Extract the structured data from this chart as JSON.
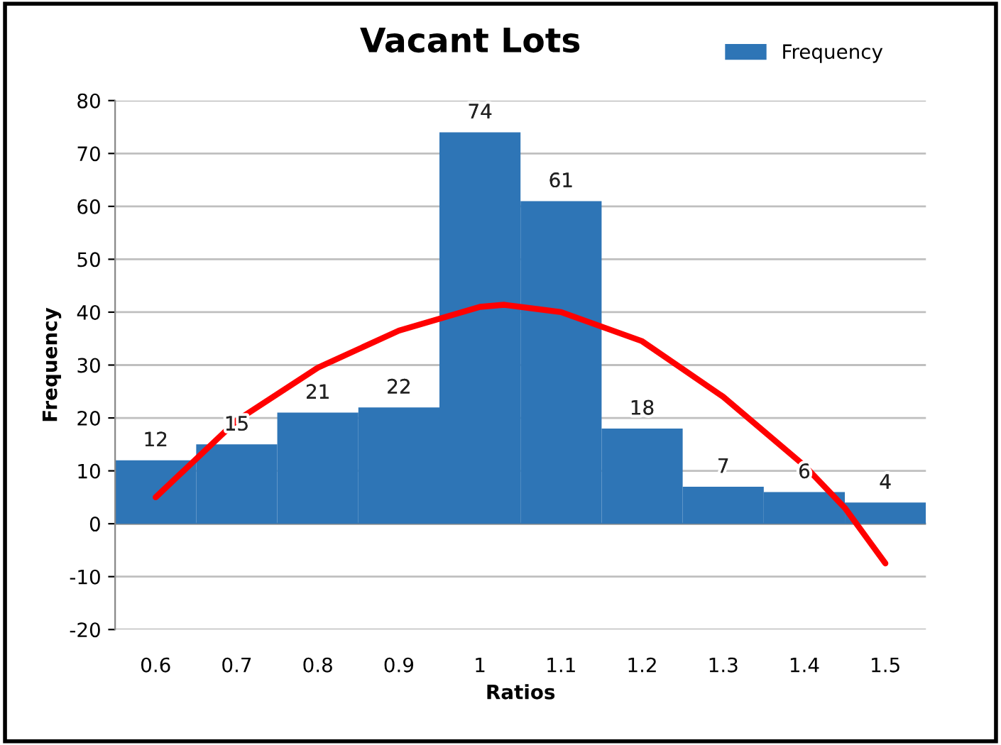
{
  "chart_data": {
    "type": "histogram",
    "title": "Vacant Lots",
    "xlabel": "Ratios",
    "ylabel": "Frequency",
    "bins": [
      0.55,
      0.65,
      0.75,
      0.85,
      0.95,
      1.05,
      1.15,
      1.25,
      1.35,
      1.45,
      1.55
    ],
    "series": [
      {
        "name": "Frequency",
        "color": "#2e75b6",
        "values": [
          12,
          15,
          21,
          22,
          74,
          61,
          18,
          7,
          6,
          4
        ],
        "value_labels": [
          "12",
          "15",
          "21",
          "22",
          "74",
          "61",
          "18",
          "7",
          "6",
          "4"
        ]
      },
      {
        "type": "line",
        "color": "#ff0000",
        "x": [
          0.6,
          0.7,
          0.8,
          0.9,
          1.0,
          1.03,
          1.1,
          1.2,
          1.3,
          1.4,
          1.45,
          1.5
        ],
        "values": [
          5,
          19.5,
          29.5,
          36.5,
          41,
          41.4,
          40,
          34.5,
          24,
          11,
          3,
          -7.5
        ]
      }
    ],
    "xlim": [
      0.55,
      1.55
    ],
    "xticks": [
      0.6,
      0.7,
      0.8,
      0.9,
      {
        "value": 1.0,
        "label": "1"
      },
      1.1,
      1.2,
      1.3,
      1.4,
      1.5
    ],
    "ylim": [
      -20,
      80
    ],
    "yticks": [
      -20,
      -10,
      0,
      10,
      20,
      30,
      40,
      50,
      60,
      70,
      80
    ],
    "grid": "y",
    "legend": "top right"
  }
}
